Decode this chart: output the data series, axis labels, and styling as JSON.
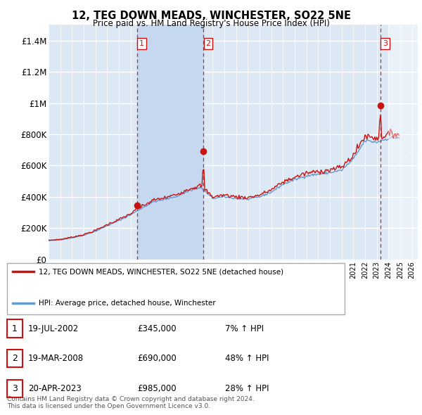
{
  "title": "12, TEG DOWN MEADS, WINCHESTER, SO22 5NE",
  "subtitle": "Price paid vs. HM Land Registry's House Price Index (HPI)",
  "ylim": [
    0,
    1500000
  ],
  "yticks": [
    0,
    200000,
    400000,
    600000,
    800000,
    1000000,
    1200000,
    1400000
  ],
  "ytick_labels": [
    "£0",
    "£200K",
    "£400K",
    "£600K",
    "£800K",
    "£1M",
    "£1.2M",
    "£1.4M"
  ],
  "xlim_start": 1995.0,
  "xlim_end": 2026.5,
  "background_color": "#ffffff",
  "plot_bg_color": "#dce9f5",
  "grid_color": "#ffffff",
  "hpi_line_color": "#6699cc",
  "price_line_color": "#cc1111",
  "sale_marker_color": "#cc1111",
  "sale_vline_color": "#cc1111",
  "shade_color": "#c5d8f0",
  "legend_label_price": "12, TEG DOWN MEADS, WINCHESTER, SO22 5NE (detached house)",
  "legend_label_hpi": "HPI: Average price, detached house, Winchester",
  "sales": [
    {
      "num": 1,
      "date_label": "19-JUL-2002",
      "price": 345000,
      "pct": "7%",
      "x": 2002.54,
      "marker_y": 345000
    },
    {
      "num": 2,
      "date_label": "19-MAR-2008",
      "price": 690000,
      "pct": "48%",
      "x": 2008.21,
      "marker_y": 690000
    },
    {
      "num": 3,
      "date_label": "20-APR-2023",
      "price": 985000,
      "pct": "28%",
      "x": 2023.3,
      "marker_y": 985000
    }
  ],
  "footer_text": "Contains HM Land Registry data © Crown copyright and database right 2024.\nThis data is licensed under the Open Government Licence v3.0."
}
